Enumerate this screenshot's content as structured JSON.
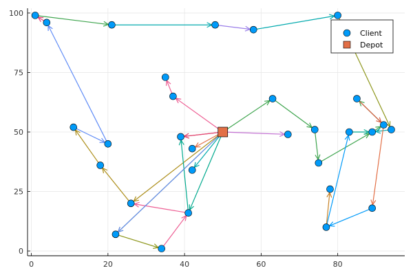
{
  "chart_data": {
    "type": "scatter",
    "xlim": [
      -1,
      97.5
    ],
    "ylim": [
      -2,
      102
    ],
    "x_ticks": [
      0,
      20,
      40,
      60,
      80
    ],
    "y_ticks": [
      0,
      25,
      50,
      75,
      100
    ],
    "grid": true,
    "legend_position": "top-right",
    "legend": [
      {
        "name": "Client",
        "marker": "circle",
        "color": "#009af9"
      },
      {
        "name": "Depot",
        "marker": "square",
        "color": "#e26f46"
      }
    ],
    "clients": [
      {
        "x": 1,
        "y": 99
      },
      {
        "x": 4,
        "y": 96
      },
      {
        "x": 21,
        "y": 95
      },
      {
        "x": 48,
        "y": 95
      },
      {
        "x": 58,
        "y": 93
      },
      {
        "x": 80,
        "y": 99
      },
      {
        "x": 35,
        "y": 73
      },
      {
        "x": 37,
        "y": 65
      },
      {
        "x": 63,
        "y": 64
      },
      {
        "x": 85,
        "y": 64
      },
      {
        "x": 11,
        "y": 52
      },
      {
        "x": 20,
        "y": 45
      },
      {
        "x": 39,
        "y": 48
      },
      {
        "x": 42,
        "y": 43
      },
      {
        "x": 67,
        "y": 49
      },
      {
        "x": 74,
        "y": 51
      },
      {
        "x": 83,
        "y": 50
      },
      {
        "x": 89,
        "y": 50
      },
      {
        "x": 92,
        "y": 53
      },
      {
        "x": 94,
        "y": 51
      },
      {
        "x": 42,
        "y": 34
      },
      {
        "x": 75,
        "y": 37
      },
      {
        "x": 18,
        "y": 36
      },
      {
        "x": 78,
        "y": 26
      },
      {
        "x": 26,
        "y": 20
      },
      {
        "x": 41,
        "y": 16
      },
      {
        "x": 89,
        "y": 18
      },
      {
        "x": 77,
        "y": 10
      },
      {
        "x": 22,
        "y": 7
      },
      {
        "x": 34,
        "y": 1
      }
    ],
    "depot": {
      "x": 50,
      "y": 50
    },
    "routes": [
      {
        "color": "#e26f46",
        "path": [
          [
            50,
            50
          ],
          [
            42,
            43
          ]
        ]
      },
      {
        "color": "#3da44d",
        "path": [
          [
            50,
            50
          ],
          [
            63,
            64
          ],
          [
            74,
            51
          ],
          [
            75,
            37
          ],
          [
            89,
            50
          ],
          [
            92,
            53
          ],
          [
            85,
            64
          ]
        ]
      },
      {
        "color": "#c271d2",
        "path": [
          [
            50,
            50
          ],
          [
            67,
            49
          ]
        ]
      },
      {
        "color": "#ac8d18",
        "path": [
          [
            50,
            50
          ],
          [
            26,
            20
          ],
          [
            18,
            36
          ],
          [
            11,
            52
          ]
        ]
      },
      {
        "color": "#00a9ad",
        "path": [
          [
            50,
            50
          ],
          [
            42,
            34
          ]
        ]
      },
      {
        "color": "#ed5e93",
        "path": [
          [
            50,
            50
          ],
          [
            37,
            65
          ],
          [
            35,
            73
          ]
        ]
      },
      {
        "color": "#c68125",
        "path": [
          [
            50,
            50
          ],
          [
            39,
            48
          ]
        ]
      },
      {
        "color": "#00a98d",
        "path": [
          [
            50,
            50
          ],
          [
            41,
            16
          ],
          [
            39,
            48
          ]
        ]
      },
      {
        "color": "#8e971d",
        "path": [
          [
            50,
            50
          ],
          [
            22,
            7
          ],
          [
            34,
            1
          ]
        ]
      },
      {
        "color": "#608cf6",
        "path": [
          [
            11,
            52
          ],
          [
            20,
            45
          ],
          [
            4,
            96
          ]
        ]
      },
      {
        "color": "#e4407a",
        "path": [
          [
            4,
            96
          ],
          [
            1,
            99
          ]
        ]
      },
      {
        "color": "#3da44d",
        "path": [
          [
            1,
            99
          ],
          [
            21,
            95
          ]
        ]
      },
      {
        "color": "#00a9ad",
        "path": [
          [
            21,
            95
          ],
          [
            48,
            95
          ]
        ]
      },
      {
        "color": "#9b7fe9",
        "path": [
          [
            48,
            95
          ],
          [
            58,
            93
          ]
        ]
      },
      {
        "color": "#00a9ad",
        "path": [
          [
            58,
            93
          ],
          [
            80,
            99
          ]
        ]
      },
      {
        "color": "#8e971d",
        "path": [
          [
            80,
            99
          ],
          [
            94,
            51
          ]
        ]
      },
      {
        "color": "#00a9ad",
        "path": [
          [
            94,
            51
          ],
          [
            89,
            50
          ]
        ]
      },
      {
        "color": "#ed5e93",
        "path": [
          [
            34,
            1
          ],
          [
            41,
            16
          ],
          [
            26,
            20
          ]
        ]
      },
      {
        "color": "#e26f46",
        "path": [
          [
            92,
            53
          ],
          [
            89,
            18
          ]
        ]
      },
      {
        "color": "#009af9",
        "path": [
          [
            89,
            18
          ],
          [
            77,
            10
          ],
          [
            83,
            50
          ]
        ]
      },
      {
        "color": "#c68125",
        "path": [
          [
            77,
            10
          ],
          [
            78,
            26
          ]
        ]
      },
      {
        "color": "#00a98d",
        "path": [
          [
            83,
            50
          ],
          [
            89,
            50
          ]
        ]
      },
      {
        "color": "#d85b3f",
        "path": [
          [
            85,
            64
          ],
          [
            92,
            53
          ]
        ]
      },
      {
        "color": "#608cf6",
        "path": [
          [
            50,
            50
          ],
          [
            22,
            7
          ]
        ]
      },
      {
        "color": "#e4407a",
        "path": [
          [
            50,
            50
          ],
          [
            39,
            48
          ]
        ]
      }
    ]
  }
}
